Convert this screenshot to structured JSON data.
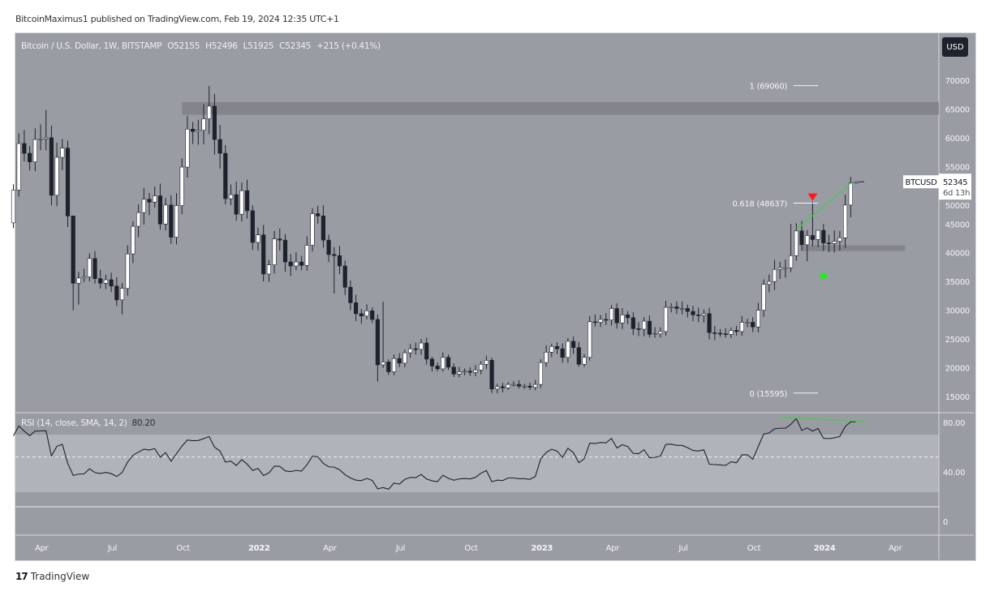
{
  "header": {
    "published": "BitcoinMaximus1 published on TradingView.com, Feb 19, 2024 12:35 UTC+1",
    "symbol": "Bitcoin / U.S. Dollar, 1W, BITSTAMP",
    "open": "O52155",
    "high": "H52496",
    "low": "L51925",
    "close": "C52345",
    "change": "+215 (+0.41%)"
  },
  "currency_button": "USD",
  "price_label": {
    "symbol": "BTCUSD",
    "price": "52345",
    "countdown": "6d 13h"
  },
  "footer": {
    "brand": "TradingView",
    "logo": "TV"
  },
  "colors": {
    "background": "#9a9ca4",
    "up": "#ffffff",
    "down": "#1e222d",
    "accent_green": "#27e827",
    "accent_red": "#ff1a1a",
    "zone": "#7f8187"
  },
  "chart_data": {
    "type": "candlestick",
    "title": "Bitcoin / U.S. Dollar, 1W, BITSTAMP",
    "interval": "1W",
    "start_week": "2021-03-01",
    "first_open": 45200,
    "closes": [
      50900,
      59000,
      57300,
      55800,
      59700,
      59800,
      60000,
      50000,
      56600,
      58200,
      46400,
      34700,
      35600,
      35800,
      39000,
      35500,
      34700,
      35300,
      34200,
      31800,
      33800,
      39800,
      44600,
      47000,
      49300,
      48800,
      49900,
      45000,
      48300,
      42700,
      48200,
      54900,
      61500,
      61100,
      61300,
      63300,
      65500,
      59700,
      57300,
      49400,
      50100,
      46700,
      50800,
      47300,
      41800,
      43100,
      36300,
      37900,
      42400,
      42200,
      38400,
      37700,
      38400,
      37800,
      41300,
      46800,
      46400,
      42200,
      39700,
      39500,
      37700,
      34000,
      31300,
      29400,
      29000,
      29900,
      28400,
      20500,
      21000,
      19300,
      21600,
      20800,
      22600,
      23300,
      23200,
      24300,
      21500,
      20300,
      19800,
      21800,
      20100,
      18900,
      19300,
      19400,
      19200,
      19600,
      20600,
      21300,
      16300,
      16700,
      16500,
      17100,
      17100,
      16800,
      16800,
      16600,
      17100,
      20900,
      22700,
      23700,
      23300,
      21800,
      24600,
      23500,
      20600,
      21800,
      28000,
      27900,
      28400,
      28300,
      30300,
      27800,
      29200,
      28700,
      26800,
      26700,
      28100,
      25800,
      25900,
      26300,
      30500,
      30600,
      30300,
      30300,
      29800,
      29200,
      29100,
      29400,
      26100,
      26000,
      25900,
      25800,
      26500,
      26300,
      27900,
      27900,
      27100,
      30000,
      34500,
      35000,
      37100,
      37400,
      37400,
      39500,
      43800,
      41400,
      43000,
      42300,
      43900,
      41700,
      41600,
      42000,
      42600,
      48300,
      52155,
      52345
    ],
    "high_overrides": {
      "6": 64800,
      "10": 59500,
      "11": 42000,
      "36": 69000,
      "68": 31500,
      "98": 23900,
      "143": 45000,
      "147": 48900,
      "148": 43300,
      "155": 52496
    },
    "low_overrides": {
      "11": 30000,
      "12": 31000,
      "20": 29300,
      "59": 32900,
      "67": 17600,
      "97": 16500,
      "146": 38500,
      "155": 51925
    },
    "y_axis": {
      "ticks": [
        15000,
        20000,
        25000,
        30000,
        35000,
        40000,
        45000,
        50000,
        55000,
        60000,
        65000,
        70000
      ],
      "range": [
        12500,
        73000
      ]
    },
    "x_axis": {
      "ticks": [
        {
          "label": "Apr",
          "week": 4,
          "year": false
        },
        {
          "label": "Jul",
          "week": 17,
          "year": false
        },
        {
          "label": "Oct",
          "week": 30,
          "year": false
        },
        {
          "label": "2022",
          "week": 44,
          "year": true
        },
        {
          "label": "Apr",
          "week": 57,
          "year": false
        },
        {
          "label": "Jul",
          "week": 70,
          "year": false
        },
        {
          "label": "Oct",
          "week": 83,
          "year": false
        },
        {
          "label": "2023",
          "week": 96,
          "year": true
        },
        {
          "label": "Apr",
          "week": 109,
          "year": false
        },
        {
          "label": "Jul",
          "week": 122,
          "year": false
        },
        {
          "label": "Oct",
          "week": 135,
          "year": false
        },
        {
          "label": "2024",
          "week": 148,
          "year": true
        },
        {
          "label": "Apr",
          "week": 161,
          "year": false
        }
      ]
    },
    "fibonacci": [
      {
        "label": "1 (69060)",
        "price": 69060
      },
      {
        "label": "0.618 (48637)",
        "price": 48637
      },
      {
        "label": "0 (15595)",
        "price": 15595
      }
    ],
    "zones": [
      {
        "name": "resistance",
        "from": 64000,
        "to": 66200,
        "start_week": 31
      },
      {
        "name": "support",
        "from": 40300,
        "to": 41300,
        "start_week": 145,
        "end_week": 164
      }
    ],
    "trendline": {
      "from": {
        "week": 144,
        "price": 44000
      },
      "to": {
        "week": 154,
        "price": 52100
      }
    },
    "markers": [
      {
        "type": "bearish-triangle",
        "week": 147,
        "price": 49600
      },
      {
        "type": "bullish-triangle",
        "week": 149,
        "price": 36200
      }
    ],
    "rsi": {
      "legend": "RSI (14, close, SMA, 14, 2)",
      "value": "80.20",
      "period": 14,
      "levels": [
        30,
        50,
        70
      ],
      "axis_ticks": [
        "80.00",
        "40.00",
        "0"
      ],
      "range": [
        0,
        100
      ],
      "divergence": {
        "from": {
          "week": 141,
          "rsi": 84
        },
        "to": {
          "week": 157,
          "rsi": 80.5
        }
      }
    }
  }
}
